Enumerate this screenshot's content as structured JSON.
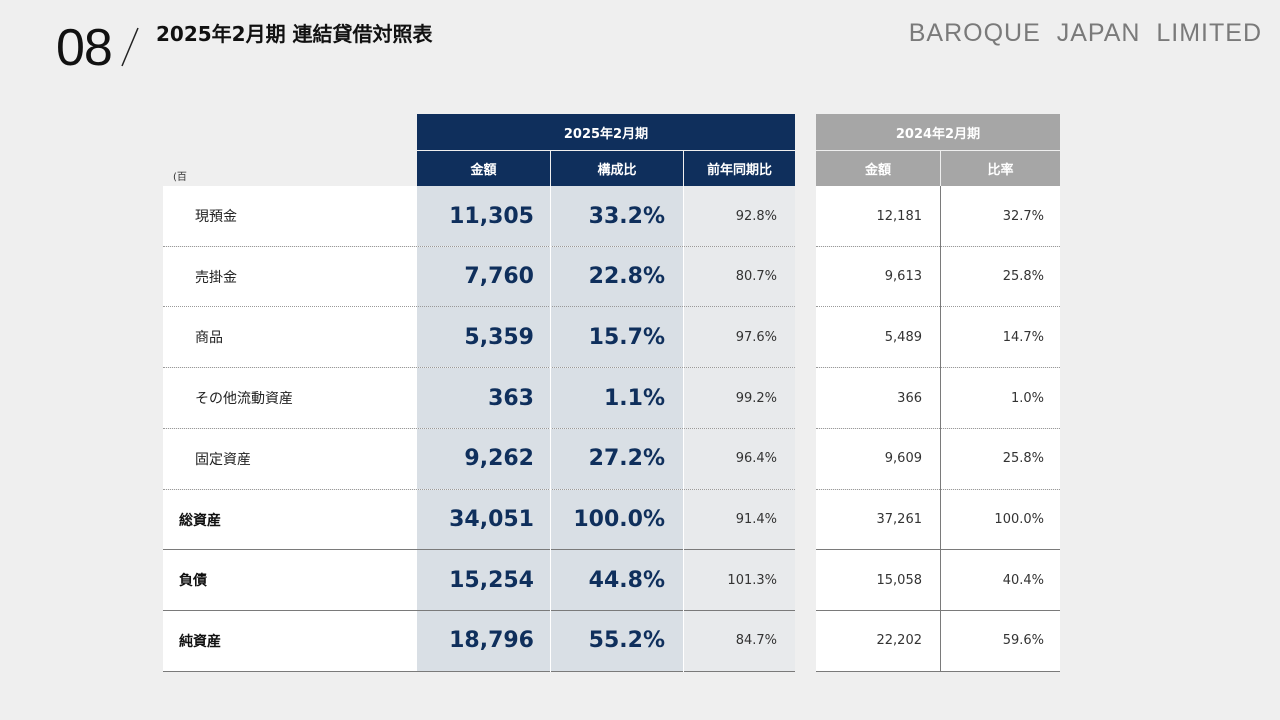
{
  "header": {
    "page_number": "08",
    "title": "2025年2月期 連結貸借対照表",
    "brand": "BAROQUE JAPAN LIMITED"
  },
  "table": {
    "unit": "(百万円)",
    "current_period": {
      "label": "2025年2月期",
      "columns": [
        "金額",
        "構成比",
        "前年同期比"
      ]
    },
    "prior_period": {
      "label": "2024年2月期",
      "columns": [
        "金額",
        "比率"
      ]
    },
    "rows": [
      {
        "label": "現預金",
        "amount": "11,305",
        "ratio": "33.2%",
        "yoy": "92.8%",
        "prior_amount": "12,181",
        "prior_ratio": "32.7%"
      },
      {
        "label": "売掛金",
        "amount": "7,760",
        "ratio": "22.8%",
        "yoy": "80.7%",
        "prior_amount": "9,613",
        "prior_ratio": "25.8%"
      },
      {
        "label": "商品",
        "amount": "5,359",
        "ratio": "15.7%",
        "yoy": "97.6%",
        "prior_amount": "5,489",
        "prior_ratio": "14.7%"
      },
      {
        "label": "その他流動資産",
        "amount": "363",
        "ratio": "1.1%",
        "yoy": "99.2%",
        "prior_amount": "366",
        "prior_ratio": "1.0%"
      },
      {
        "label": "固定資産",
        "amount": "9,262",
        "ratio": "27.2%",
        "yoy": "96.4%",
        "prior_amount": "9,609",
        "prior_ratio": "25.8%"
      },
      {
        "label": "総資産",
        "amount": "34,051",
        "ratio": "100.0%",
        "yoy": "91.4%",
        "prior_amount": "37,261",
        "prior_ratio": "100.0%"
      },
      {
        "label": "負債",
        "amount": "15,254",
        "ratio": "44.8%",
        "yoy": "101.3%",
        "prior_amount": "15,058",
        "prior_ratio": "40.4%"
      },
      {
        "label": "純資産",
        "amount": "18,796",
        "ratio": "55.2%",
        "yoy": "84.7%",
        "prior_amount": "22,202",
        "prior_ratio": "59.6%"
      }
    ]
  }
}
